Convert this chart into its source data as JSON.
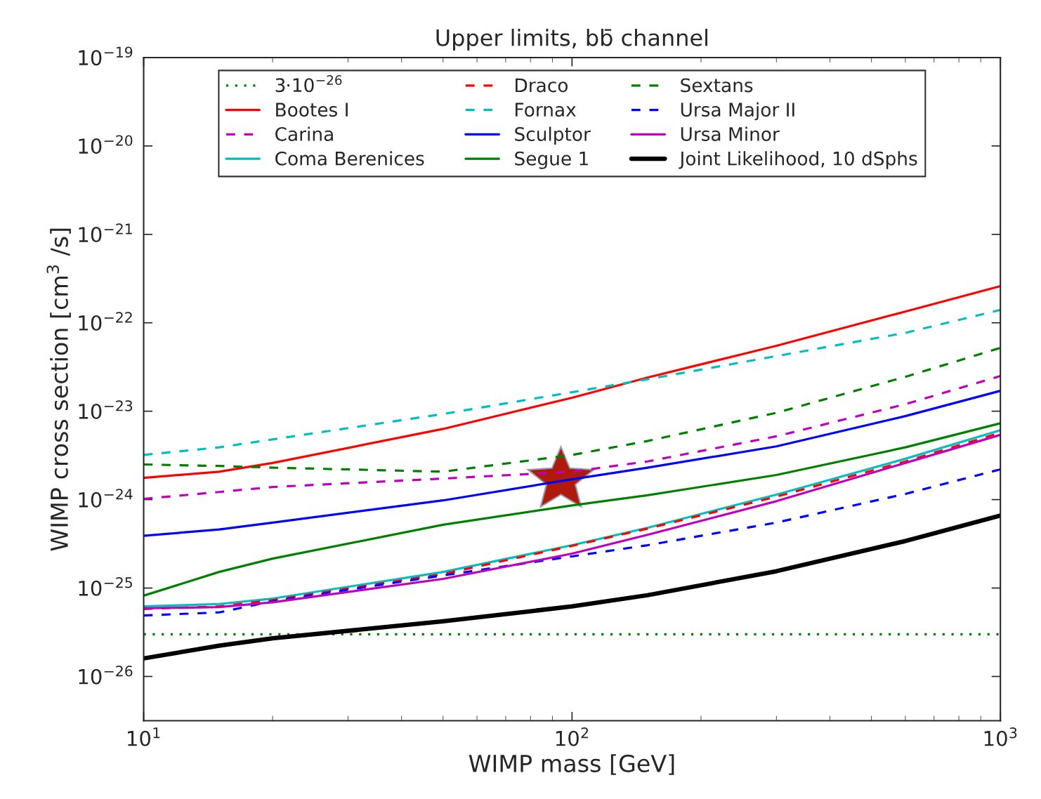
{
  "chart_data": {
    "type": "line",
    "title": "Upper limits, bb̄ channel",
    "xlabel": "WIMP mass [GeV]",
    "ylabel": "WIMP cross section [cm$^{3}$ /s]",
    "x": [
      10,
      15,
      20,
      50,
      100,
      150,
      300,
      600,
      1000
    ],
    "series": [
      {
        "name": "3·10$^{−26}$",
        "color": "#008000",
        "line_style": "dotted",
        "values": [
          3e-26,
          3e-26,
          3e-26,
          3e-26,
          3e-26,
          3e-26,
          3e-26,
          3e-26,
          3e-26
        ]
      },
      {
        "name": "Bootes I",
        "color": "#ff0000",
        "line_style": "solid",
        "values": [
          1.76e-24,
          2.07e-24,
          2.6e-24,
          6.3e-24,
          1.42e-23,
          2.4e-23,
          5.5e-23,
          1.34e-22,
          2.6e-22
        ]
      },
      {
        "name": "Carina",
        "color": "#bf00bf",
        "line_style": "dashed",
        "values": [
          1.02e-24,
          1.22e-24,
          1.39e-24,
          1.73e-24,
          2.07e-24,
          2.7e-24,
          5.2e-24,
          1.2e-23,
          2.5e-23
        ]
      },
      {
        "name": "Coma Berenices",
        "color": "#00bfbf",
        "line_style": "solid",
        "values": [
          6.2e-26,
          6.6e-26,
          7.6e-26,
          1.52e-25,
          3.05e-25,
          4.8e-25,
          1.14e-24,
          2.9e-24,
          6.1e-24
        ]
      },
      {
        "name": "Draco",
        "color": "#ff0000",
        "line_style": "dashed",
        "values": [
          5.8e-26,
          6.2e-26,
          7.3e-26,
          1.44e-25,
          3e-25,
          4.7e-25,
          1.08e-24,
          2.7e-24,
          5.7e-24
        ]
      },
      {
        "name": "Fornax",
        "color": "#00bfbf",
        "line_style": "dashed",
        "values": [
          3.2e-24,
          3.9e-24,
          4.8e-24,
          9.3e-24,
          1.64e-23,
          2.3e-23,
          4.2e-23,
          7.7e-23,
          1.4e-22
        ]
      },
      {
        "name": "Sculptor",
        "color": "#0000ff",
        "line_style": "solid",
        "values": [
          3.9e-25,
          4.6e-25,
          5.5e-25,
          9.8e-25,
          1.7e-24,
          2.3e-24,
          4e-24,
          8.8e-24,
          1.7e-23
        ]
      },
      {
        "name": "Segue 1",
        "color": "#008000",
        "line_style": "solid",
        "values": [
          8.2e-26,
          1.52e-25,
          2.15e-25,
          5.2e-25,
          8.6e-25,
          1.12e-24,
          1.9e-24,
          3.9e-24,
          7.3e-24
        ]
      },
      {
        "name": "Sextans",
        "color": "#008000",
        "line_style": "dashed",
        "values": [
          2.5e-24,
          2.4e-24,
          2.3e-24,
          2.07e-24,
          3.2e-24,
          4.6e-24,
          9.6e-24,
          2.45e-23,
          5.2e-23
        ]
      },
      {
        "name": "Ursa Major II",
        "color": "#0000ff",
        "line_style": "dashed",
        "values": [
          4.9e-26,
          5.3e-26,
          7.1e-26,
          1.39e-25,
          2.28e-25,
          3.05e-25,
          5.5e-25,
          1.16e-24,
          2.2e-24
        ]
      },
      {
        "name": "Ursa Minor",
        "color": "#bf00bf",
        "line_style": "solid",
        "values": [
          5.9e-26,
          6.1e-26,
          6.9e-26,
          1.27e-25,
          2.45e-25,
          4e-25,
          9.6e-25,
          2.6e-24,
          5.4e-24
        ]
      },
      {
        "name": "Joint Likelihood, 10 dSphs",
        "color": "#000000",
        "line_style": "solid",
        "values": [
          1.6e-26,
          2.23e-26,
          2.7e-26,
          4.2e-26,
          6.2e-26,
          8.3e-26,
          1.55e-25,
          3.4e-25,
          6.6e-25
        ]
      }
    ],
    "log": "xy",
    "xlim": [
      10,
      1000
    ],
    "ylim": [
      3.16e-27,
      1e-19
    ],
    "xticks": [
      {
        "value": 10,
        "label": "10$^{1}$"
      },
      {
        "value": 100,
        "label": "10$^{2}$"
      },
      {
        "value": 1000,
        "label": "10$^{3}$"
      }
    ],
    "yticks": [
      {
        "value": 1e-26,
        "label": "10$^{−26}$"
      },
      {
        "value": 1e-25,
        "label": "10$^{−25}$"
      },
      {
        "value": 1e-24,
        "label": "10$^{−24}$"
      },
      {
        "value": 1e-23,
        "label": "10$^{−23}$"
      },
      {
        "value": 1e-22,
        "label": "10$^{−22}$"
      },
      {
        "value": 1e-21,
        "label": "10$^{−21}$"
      },
      {
        "value": 1e-20,
        "label": "10$^{−20}$"
      },
      {
        "value": 1e-19,
        "label": "10$^{−19}$"
      }
    ],
    "grid": false,
    "legend": "top",
    "marker": "none"
  }
}
